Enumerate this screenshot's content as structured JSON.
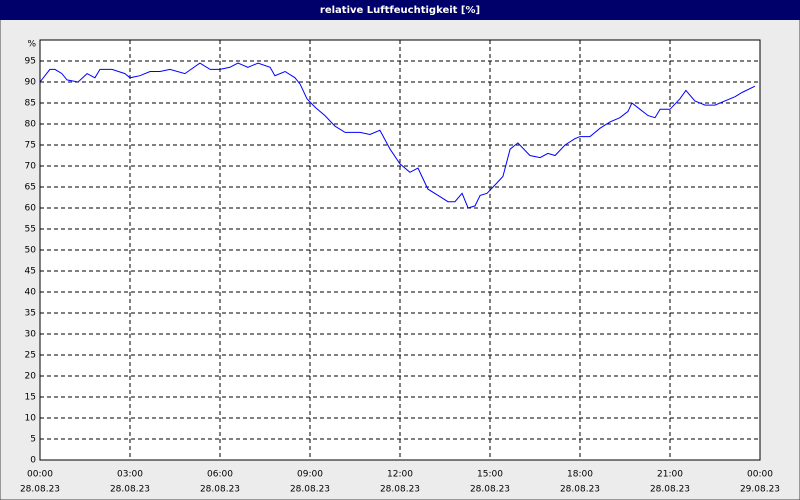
{
  "chart_data": {
    "type": "line",
    "title": "relative Luftfeuchtigkeit [%]",
    "ylabel": "%",
    "x": [
      0,
      0.33,
      0.5,
      0.73,
      0.9,
      1.27,
      1.57,
      1.83,
      2.0,
      2.4,
      2.83,
      3.0,
      3.33,
      3.67,
      4.0,
      4.33,
      4.83,
      5.33,
      5.67,
      6.0,
      6.33,
      6.6,
      6.93,
      7.27,
      7.67,
      7.83,
      8.17,
      8.5,
      8.67,
      8.9,
      9.17,
      9.5,
      9.83,
      10.17,
      10.67,
      11.0,
      11.33,
      11.67,
      12.0,
      12.33,
      12.6,
      12.93,
      13.27,
      13.6,
      13.83,
      14.07,
      14.27,
      14.5,
      14.67,
      14.9,
      15.17,
      15.43,
      15.67,
      15.93,
      16.33,
      16.67,
      16.93,
      17.17,
      17.5,
      17.83,
      18.0,
      18.33,
      18.67,
      19.0,
      19.33,
      19.6,
      19.73,
      20.0,
      20.27,
      20.5,
      20.67,
      21.0,
      21.33,
      21.53,
      21.83,
      22.17,
      22.5,
      22.83,
      23.17,
      23.4,
      23.83
    ],
    "series": [
      {
        "name": "relative Luftfeuchtigkeit",
        "color": "#0000ff",
        "values": [
          90,
          93,
          93,
          92,
          90.5,
          90,
          92,
          91,
          93,
          93,
          92,
          91,
          91.5,
          92.5,
          92.5,
          93,
          92,
          94.5,
          93,
          93,
          93.5,
          94.5,
          93.5,
          94.5,
          93.5,
          91.5,
          92.5,
          91,
          89.5,
          86,
          84,
          82,
          79.5,
          78,
          78,
          77.5,
          78.5,
          74,
          70.5,
          68.5,
          69.5,
          64.5,
          63,
          61.5,
          61.5,
          63.5,
          60,
          60.5,
          63,
          63.5,
          65.5,
          67.5,
          74,
          75.5,
          72.5,
          72,
          73,
          72.5,
          75,
          76.5,
          77,
          77,
          79,
          80.5,
          81.5,
          83,
          85,
          83.5,
          82,
          81.5,
          83.5,
          83.5,
          86,
          88,
          85.5,
          84.5,
          84.5,
          85.5,
          86.5,
          87.5,
          89
        ]
      }
    ],
    "xlim": [
      0,
      24
    ],
    "xticks": [
      {
        "value": 0,
        "label": "00:00"
      },
      {
        "value": 3,
        "label": "03:00"
      },
      {
        "value": 6,
        "label": "06:00"
      },
      {
        "value": 9,
        "label": "09:00"
      },
      {
        "value": 12,
        "label": "12:00"
      },
      {
        "value": 15,
        "label": "15:00"
      },
      {
        "value": 18,
        "label": "18:00"
      },
      {
        "value": 21,
        "label": "21:00"
      },
      {
        "value": 24,
        "label": "00:00"
      }
    ],
    "xtick_dates": [
      "28.08.23",
      "28.08.23",
      "28.08.23",
      "28.08.23",
      "28.08.23",
      "28.08.23",
      "28.08.23",
      "28.08.23",
      "29.08.23"
    ],
    "ylim": [
      0,
      100
    ],
    "yticks": [
      0,
      5,
      10,
      15,
      20,
      25,
      30,
      35,
      40,
      45,
      50,
      55,
      60,
      65,
      70,
      75,
      80,
      85,
      90,
      95
    ],
    "grid": true
  }
}
